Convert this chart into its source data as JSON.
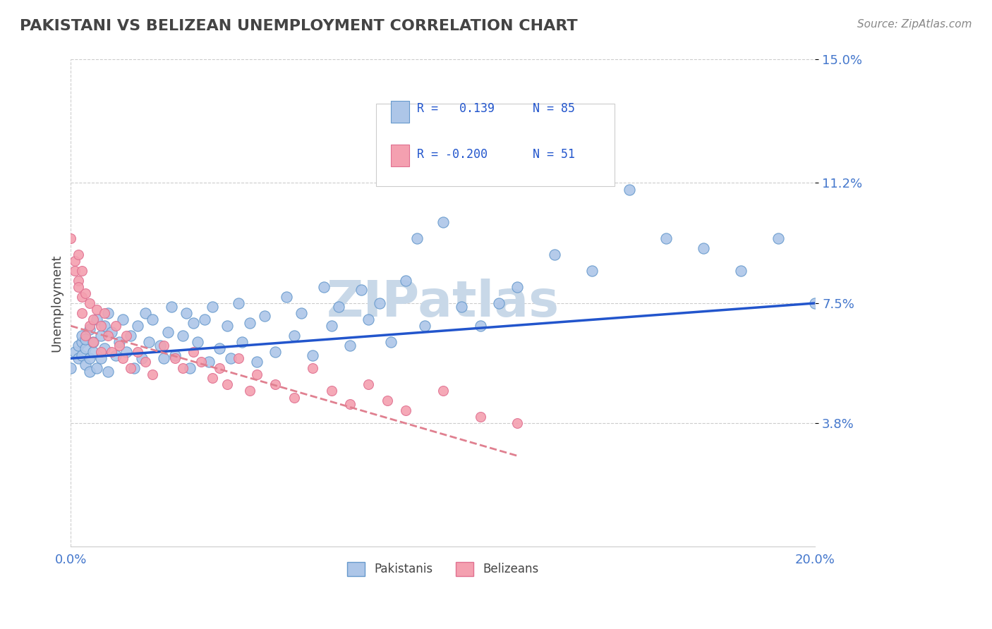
{
  "title": "PAKISTANI VS BELIZEAN UNEMPLOYMENT CORRELATION CHART",
  "source_text": "Source: ZipAtlas.com",
  "xlabel": "",
  "ylabel": "Unemployment",
  "xlim": [
    0.0,
    0.2
  ],
  "ylim": [
    0.0,
    0.15
  ],
  "yticks": [
    0.038,
    0.075,
    0.112,
    0.15
  ],
  "ytick_labels": [
    "3.8%",
    "7.5%",
    "11.2%",
    "15.0%"
  ],
  "xticks": [
    0.0,
    0.2
  ],
  "xtick_labels": [
    "0.0%",
    "20.0%"
  ],
  "pakistani_color": "#adc6e8",
  "pakistani_edge_color": "#6699cc",
  "belizean_color": "#f4a0b0",
  "belizean_edge_color": "#e07090",
  "blue_line_color": "#2255cc",
  "pink_line_color": "#e08090",
  "watermark_color": "#c8d8e8",
  "legend_R1": "R =   0.139",
  "legend_N1": "N = 85",
  "legend_R2": "R = -0.200",
  "legend_N2": "N = 51",
  "R1": 0.139,
  "N1": 85,
  "R2": -0.2,
  "N2": 51,
  "pakistani_x": [
    0.0,
    0.001,
    0.002,
    0.002,
    0.003,
    0.003,
    0.003,
    0.004,
    0.004,
    0.004,
    0.005,
    0.005,
    0.005,
    0.006,
    0.006,
    0.007,
    0.007,
    0.008,
    0.008,
    0.009,
    0.009,
    0.01,
    0.01,
    0.011,
    0.012,
    0.013,
    0.014,
    0.015,
    0.016,
    0.017,
    0.018,
    0.019,
    0.02,
    0.021,
    0.022,
    0.024,
    0.025,
    0.026,
    0.027,
    0.028,
    0.03,
    0.031,
    0.032,
    0.033,
    0.034,
    0.036,
    0.037,
    0.038,
    0.04,
    0.042,
    0.043,
    0.045,
    0.046,
    0.048,
    0.05,
    0.052,
    0.055,
    0.058,
    0.06,
    0.062,
    0.065,
    0.068,
    0.07,
    0.072,
    0.075,
    0.078,
    0.08,
    0.083,
    0.086,
    0.09,
    0.093,
    0.095,
    0.1,
    0.105,
    0.11,
    0.115,
    0.12,
    0.13,
    0.14,
    0.15,
    0.16,
    0.17,
    0.18,
    0.19,
    0.2
  ],
  "pakistani_y": [
    0.055,
    0.06,
    0.058,
    0.062,
    0.063,
    0.065,
    0.059,
    0.056,
    0.061,
    0.064,
    0.054,
    0.058,
    0.067,
    0.06,
    0.063,
    0.055,
    0.07,
    0.058,
    0.065,
    0.061,
    0.068,
    0.054,
    0.072,
    0.066,
    0.059,
    0.063,
    0.07,
    0.06,
    0.065,
    0.055,
    0.068,
    0.058,
    0.072,
    0.063,
    0.07,
    0.062,
    0.058,
    0.066,
    0.074,
    0.059,
    0.065,
    0.072,
    0.055,
    0.069,
    0.063,
    0.07,
    0.057,
    0.074,
    0.061,
    0.068,
    0.058,
    0.075,
    0.063,
    0.069,
    0.057,
    0.071,
    0.06,
    0.077,
    0.065,
    0.072,
    0.059,
    0.08,
    0.068,
    0.074,
    0.062,
    0.079,
    0.07,
    0.075,
    0.063,
    0.082,
    0.095,
    0.068,
    0.1,
    0.074,
    0.068,
    0.075,
    0.08,
    0.09,
    0.085,
    0.11,
    0.095,
    0.092,
    0.085,
    0.095,
    0.075
  ],
  "belizean_x": [
    0.0,
    0.001,
    0.001,
    0.002,
    0.002,
    0.002,
    0.003,
    0.003,
    0.003,
    0.004,
    0.004,
    0.005,
    0.005,
    0.006,
    0.006,
    0.007,
    0.008,
    0.008,
    0.009,
    0.01,
    0.011,
    0.012,
    0.013,
    0.014,
    0.015,
    0.016,
    0.018,
    0.02,
    0.022,
    0.025,
    0.028,
    0.03,
    0.033,
    0.035,
    0.038,
    0.04,
    0.042,
    0.045,
    0.048,
    0.05,
    0.055,
    0.06,
    0.065,
    0.07,
    0.075,
    0.08,
    0.085,
    0.09,
    0.1,
    0.11,
    0.12
  ],
  "belizean_y": [
    0.095,
    0.088,
    0.085,
    0.09,
    0.082,
    0.08,
    0.085,
    0.077,
    0.072,
    0.078,
    0.065,
    0.075,
    0.068,
    0.07,
    0.063,
    0.073,
    0.068,
    0.06,
    0.072,
    0.065,
    0.06,
    0.068,
    0.062,
    0.058,
    0.065,
    0.055,
    0.06,
    0.057,
    0.053,
    0.062,
    0.058,
    0.055,
    0.06,
    0.057,
    0.052,
    0.055,
    0.05,
    0.058,
    0.048,
    0.053,
    0.05,
    0.046,
    0.055,
    0.048,
    0.044,
    0.05,
    0.045,
    0.042,
    0.048,
    0.04,
    0.038
  ],
  "blue_trend_x": [
    0.0,
    0.2
  ],
  "blue_trend_y_start": 0.058,
  "blue_trend_y_end": 0.075,
  "pink_trend_x": [
    0.0,
    0.12
  ],
  "pink_trend_y_start": 0.068,
  "pink_trend_y_end": 0.028,
  "background_color": "#ffffff",
  "grid_color": "#cccccc",
  "title_color": "#444444",
  "axis_label_color": "#444444",
  "tick_color": "#4477cc"
}
